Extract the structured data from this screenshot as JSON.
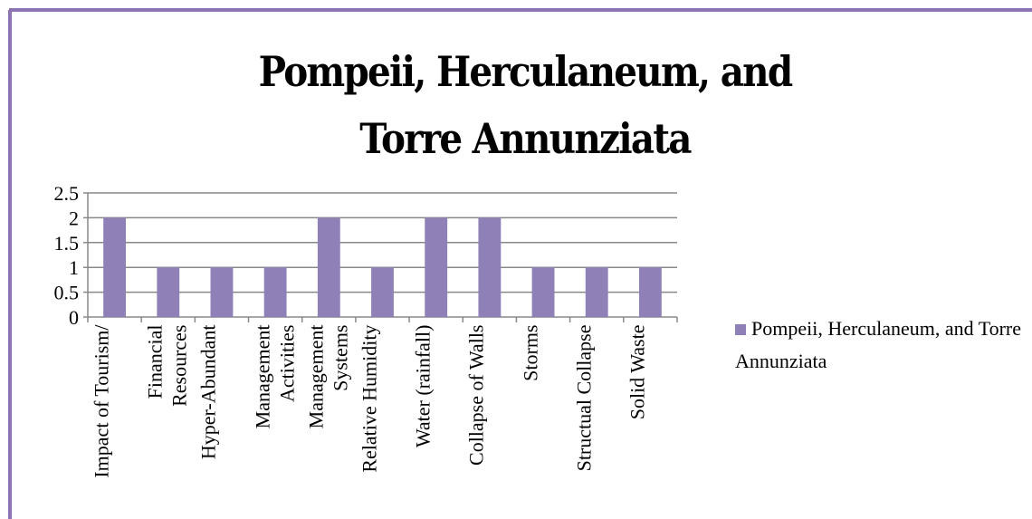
{
  "chart_data": {
    "type": "bar",
    "title": "Pompeii, Herculaneum, and Torre Annunziata",
    "categories": [
      "Impact of Tourism/",
      "Financial Resources",
      "Hyper-Abundant",
      "Management Activities",
      "Management Systems",
      "Relative Humidity",
      "Water (rainfall)",
      "Collapse of Walls",
      "Storms",
      "Structual Collapse",
      "Solid Waste"
    ],
    "series": [
      {
        "name": "Pompeii, Herculaneum, and Torre Annunziata",
        "color": "#9080b8",
        "values": [
          2,
          1,
          1,
          1,
          2,
          1,
          2,
          2,
          1,
          1,
          1
        ]
      }
    ],
    "ylim": [
      0,
      2.5
    ],
    "yticks": [
      0,
      0.5,
      1,
      1.5,
      2,
      2.5
    ],
    "grid": true,
    "legend": "right"
  }
}
